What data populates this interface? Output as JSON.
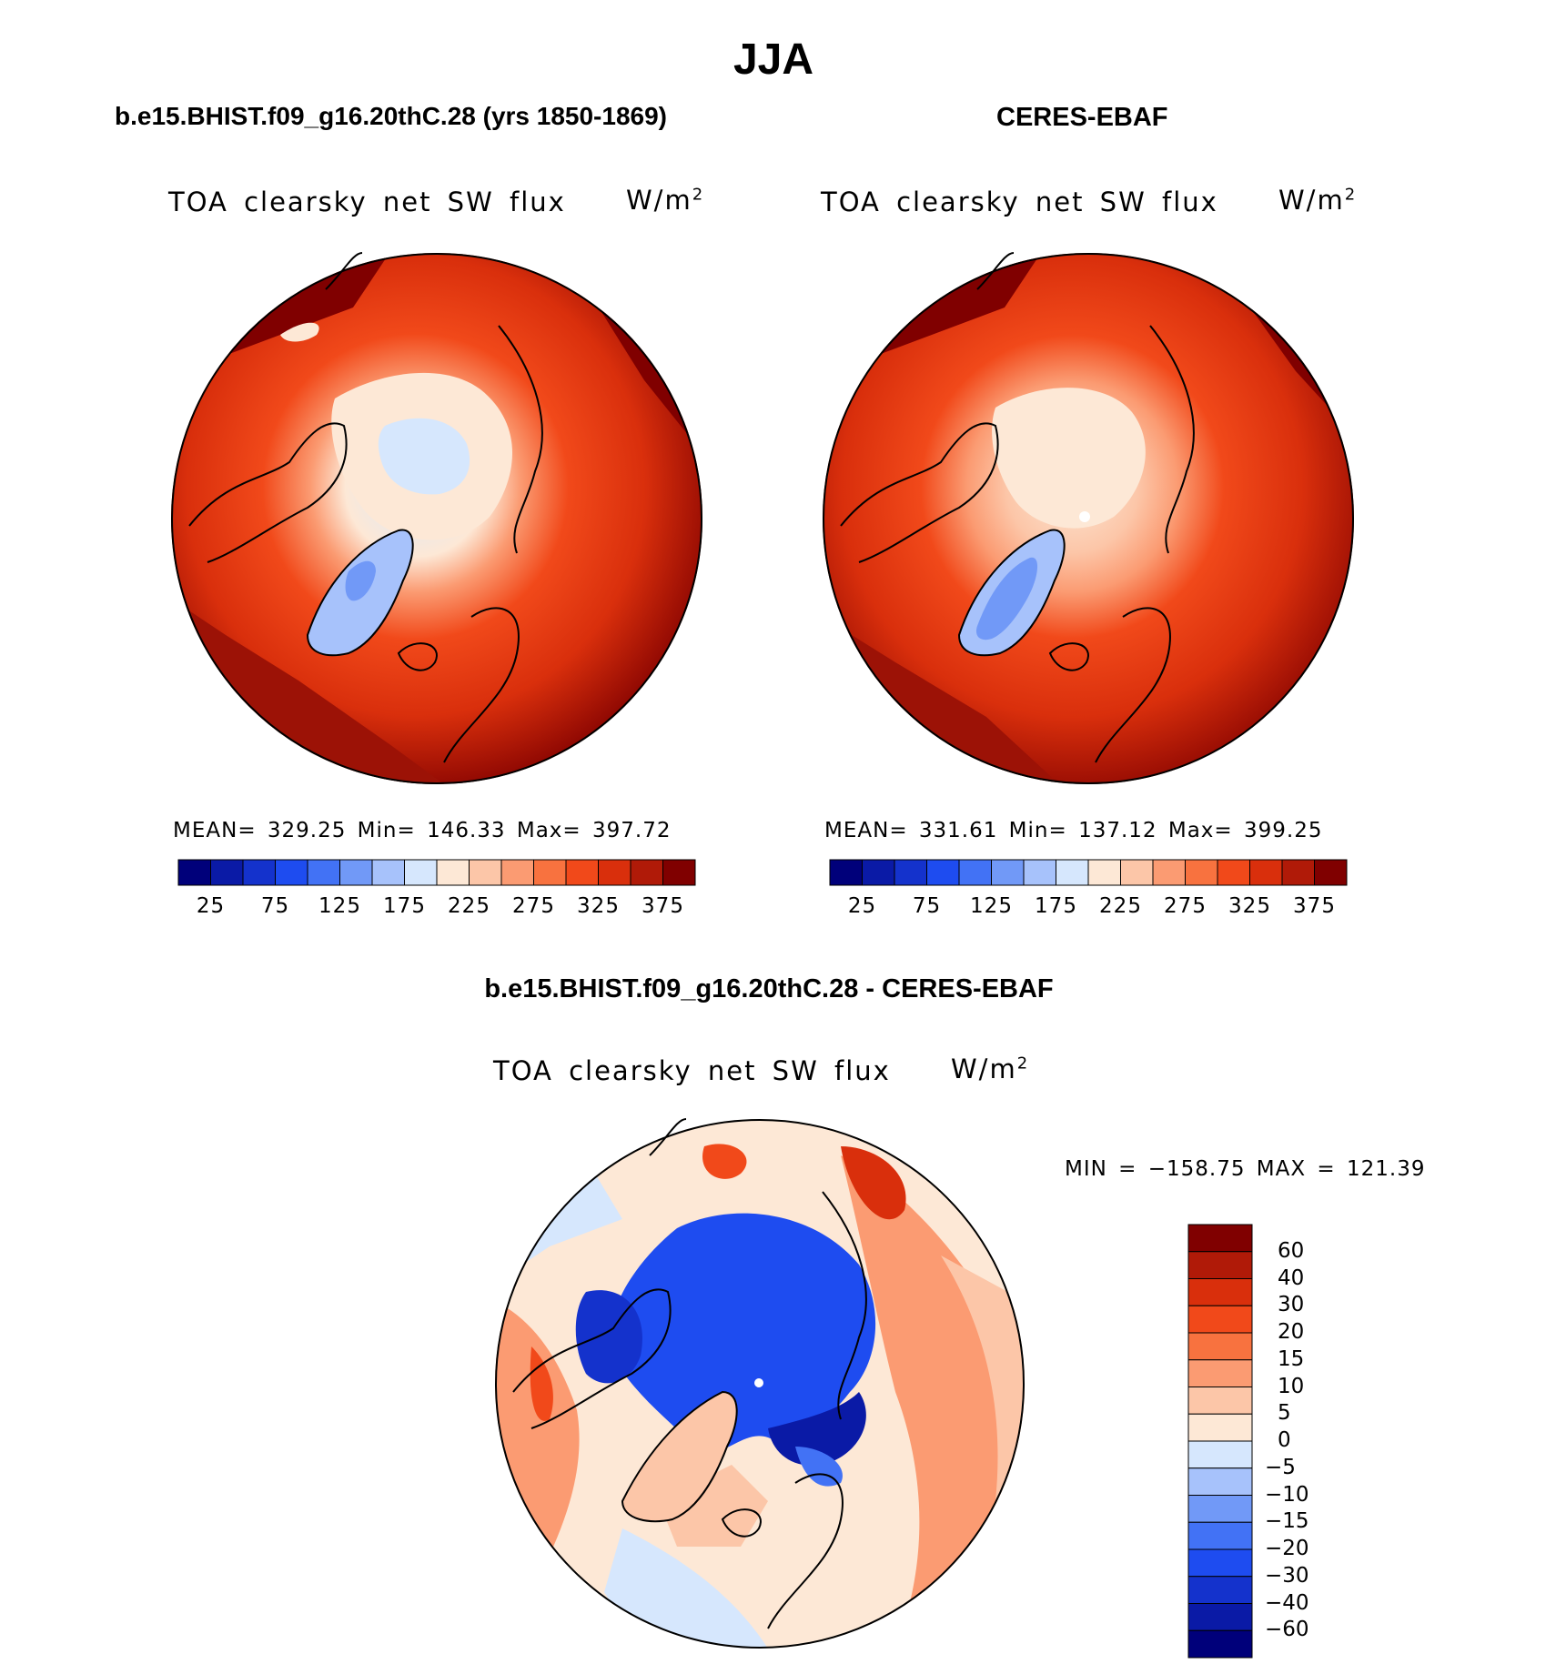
{
  "header": {
    "title": "JJA",
    "left_title": "b.e15.BHIST.f09_g16.20thC.28 (yrs 1850-1869)",
    "right_title": "CERES-EBAF",
    "diff_title": "b.e15.BHIST.f09_g16.20thC.28 - CERES-EBAF"
  },
  "panels": {
    "model": {
      "varname": "TOA clearsky net SW flux",
      "units": "W/m",
      "units_exp": "2",
      "stats": "MEAN= 329.25   Min= 146.33   Max= 397.72"
    },
    "obs": {
      "varname": "TOA clearsky net SW flux",
      "units": "W/m",
      "units_exp": "2",
      "stats": "MEAN= 331.61   Min= 137.12   Max= 399.25"
    },
    "diff": {
      "varname": "TOA clearsky net SW flux",
      "units": "W/m",
      "units_exp": "2",
      "range": "MIN = −158.75 MAX = 121.39"
    }
  },
  "colorbar_top": {
    "colors": [
      "#00007a",
      "#0a1aa6",
      "#1432cc",
      "#1e4cf0",
      "#4272f5",
      "#7199f7",
      "#a7c2fb",
      "#d6e7fd",
      "#fde8d6",
      "#fcc6a8",
      "#fb9b72",
      "#f8723f",
      "#f1491a",
      "#d92f0c",
      "#b01a08",
      "#800000"
    ],
    "tick_labels": [
      "25",
      "75",
      "125",
      "175",
      "225",
      "275",
      "325",
      "375"
    ]
  },
  "colorbar_diff": {
    "colors_top_to_bottom": [
      "#800000",
      "#b01a08",
      "#d92f0c",
      "#f1491a",
      "#f8723f",
      "#fb9b72",
      "#fcc6a8",
      "#fde8d6",
      "#d6e7fd",
      "#a7c2fb",
      "#7199f7",
      "#4272f5",
      "#1e4cf0",
      "#1432cc",
      "#0a1aa6",
      "#00007a"
    ],
    "labels": [
      "60",
      "40",
      "30",
      "20",
      "15",
      "10",
      "5",
      "0",
      "−5",
      "−10",
      "−15",
      "−20",
      "−30",
      "−40",
      "−60"
    ]
  }
}
